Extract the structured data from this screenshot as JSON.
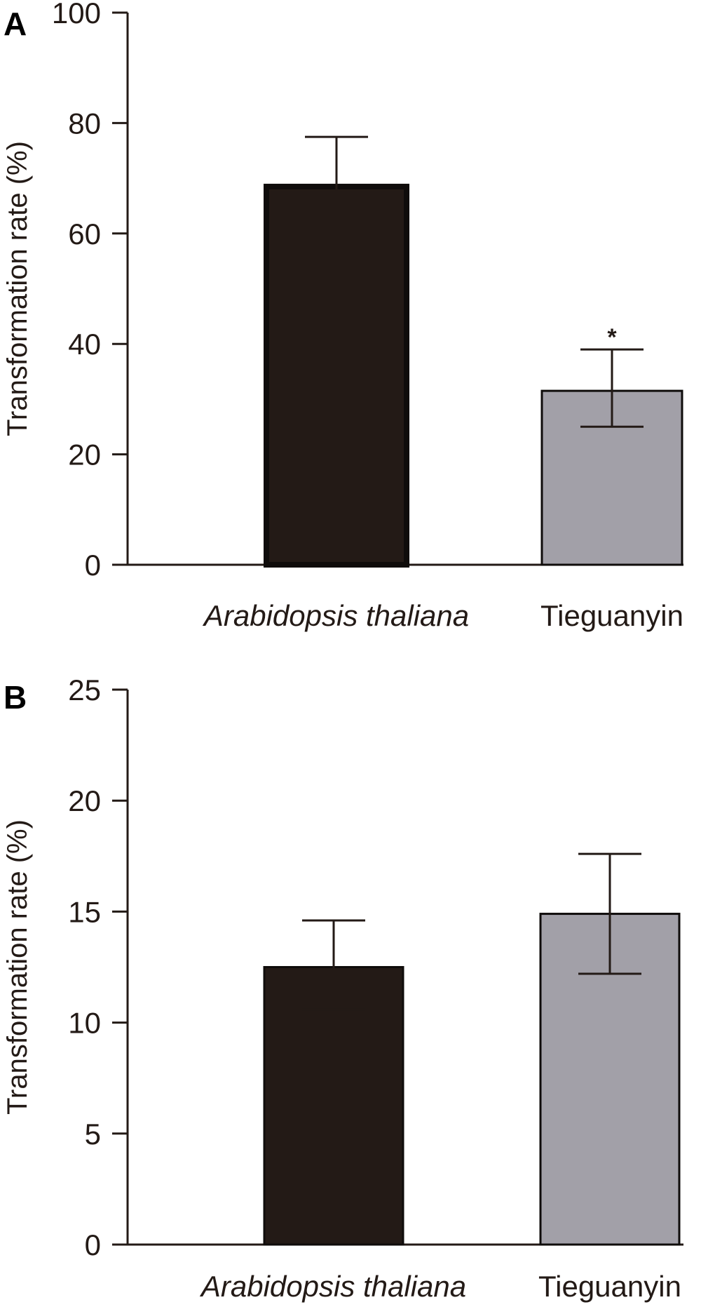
{
  "chart_data": [
    {
      "panel_label": "A",
      "type": "bar",
      "categories": [
        "Arabidopsis thaliana",
        "Tieguanyin"
      ],
      "category_italic": [
        true,
        false
      ],
      "values": [
        68.5,
        31.5
      ],
      "error_plus": [
        9.0,
        7.5
      ],
      "error_minus": [
        3.5,
        6.5
      ],
      "significance": [
        "",
        "*"
      ],
      "bar_colors": [
        "#231a16",
        "#a2a0a8"
      ],
      "ylabel": "Transformation rate (%)",
      "ylim": [
        0,
        100
      ],
      "yticks": [
        0,
        20,
        40,
        60,
        80,
        100
      ]
    },
    {
      "panel_label": "B",
      "type": "bar",
      "categories": [
        "Arabidopsis thaliana",
        "Tieguanyin"
      ],
      "category_italic": [
        true,
        false
      ],
      "values": [
        12.5,
        14.9
      ],
      "error_plus": [
        2.1,
        2.7
      ],
      "error_minus": [
        1.9,
        2.7
      ],
      "significance": [
        "",
        ""
      ],
      "bar_colors": [
        "#231a16",
        "#a2a0a8"
      ],
      "ylabel": "Transformation rate (%)",
      "ylim": [
        0,
        25
      ],
      "yticks": [
        0,
        5,
        10,
        15,
        20,
        25
      ]
    }
  ]
}
